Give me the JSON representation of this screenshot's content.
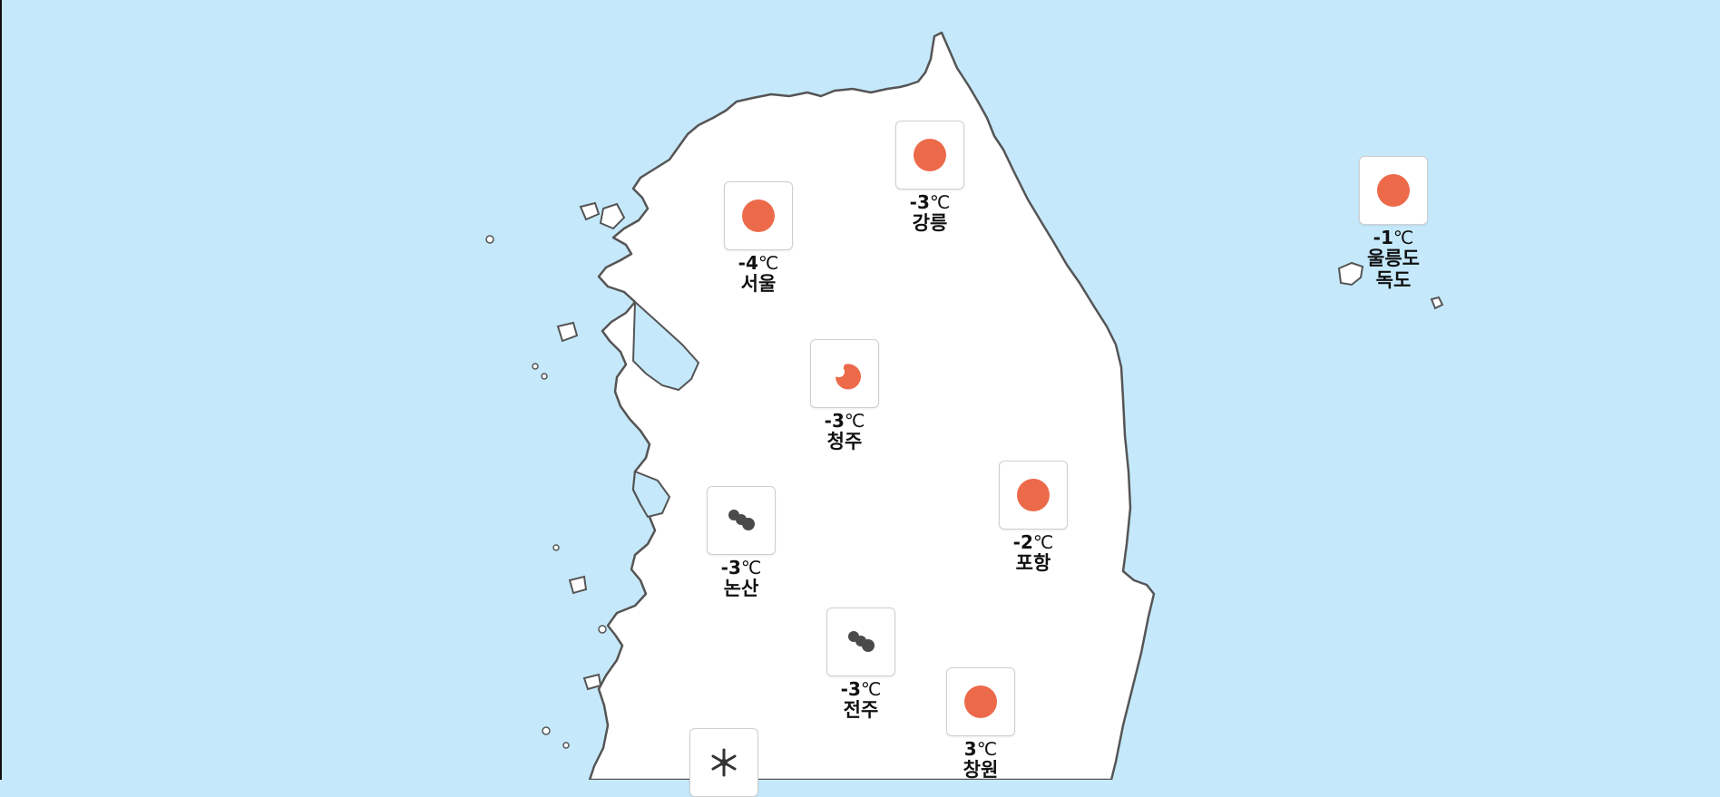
{
  "map": {
    "colors": {
      "sea": "#c5e9fb",
      "land": "#ffffff",
      "coastline": "#555555",
      "sun": "#ec6a4a",
      "cloud": "#4a4a4a"
    },
    "temp_unit": "℃",
    "stations": [
      {
        "city": "서울",
        "temp": "-4",
        "icon": "sun-icon"
      },
      {
        "city": "강릉",
        "temp": "-3",
        "icon": "sun-icon"
      },
      {
        "city": "울릉도\n독도",
        "temp": "-1",
        "icon": "sun-icon"
      },
      {
        "city": "청주",
        "temp": "-3",
        "icon": "partly-cloudy-icon"
      },
      {
        "city": "포항",
        "temp": "-2",
        "icon": "sun-icon"
      },
      {
        "city": "논산",
        "temp": "-3",
        "icon": "cloudy-icon"
      },
      {
        "city": "전주",
        "temp": "-3",
        "icon": "cloudy-icon"
      },
      {
        "city": "창원",
        "temp": "3",
        "icon": "sun-icon"
      },
      {
        "city": "",
        "temp": "",
        "icon": "snow-icon"
      }
    ]
  }
}
